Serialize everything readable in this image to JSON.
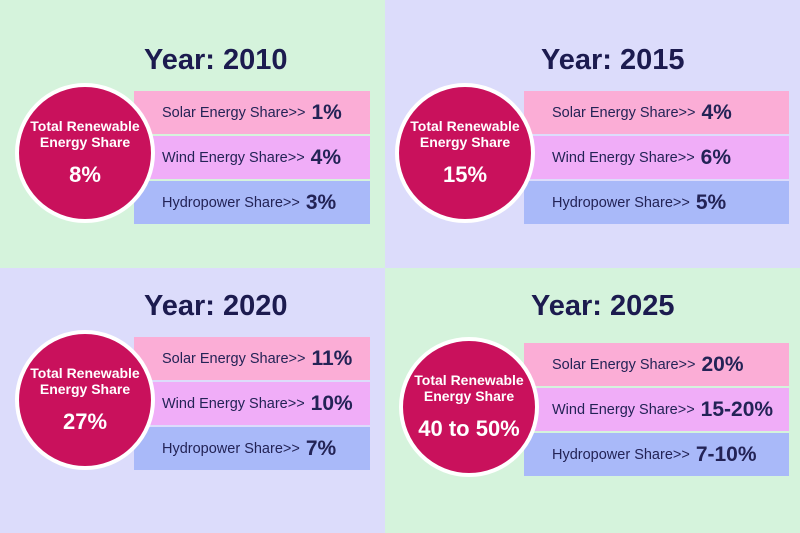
{
  "colors": {
    "green_bg": "#d5f3dc",
    "lavender_bg": "#dcdcfb",
    "circle": "#c9115c",
    "solar_bar": "#fbadd6",
    "wind_bar": "#f0adf8",
    "hydro_bar": "#a9b9f9",
    "heading_text": "#1c1b4f"
  },
  "panels": [
    {
      "year": "Year: 2010",
      "circle": {
        "title": "Total Renewable Energy Share",
        "value": "8%"
      },
      "rows": [
        {
          "label": "Solar Energy Share>>",
          "value": "1%"
        },
        {
          "label": "Wind Energy Share>>",
          "value": "4%"
        },
        {
          "label": "Hydropower Share>>",
          "value": "3%"
        }
      ]
    },
    {
      "year": "Year: 2015",
      "circle": {
        "title": "Total Renewable Energy Share",
        "value": "15%"
      },
      "rows": [
        {
          "label": "Solar Energy Share>>",
          "value": "4%"
        },
        {
          "label": "Wind Energy Share>>",
          "value": "6%"
        },
        {
          "label": "Hydropower Share>>",
          "value": "5%"
        }
      ]
    },
    {
      "year": "Year: 2020",
      "circle": {
        "title": "Total Renewable Energy Share",
        "value": "27%"
      },
      "rows": [
        {
          "label": "Solar Energy Share>>",
          "value": "11%"
        },
        {
          "label": "Wind Energy Share>>",
          "value": "10%"
        },
        {
          "label": "Hydropower Share>>",
          "value": "7%"
        }
      ]
    },
    {
      "year": "Year: 2025",
      "circle": {
        "title": "Total Renewable Energy Share",
        "value": "40 to 50%"
      },
      "rows": [
        {
          "label": "Solar Energy Share>>",
          "value": "20%"
        },
        {
          "label": "Wind Energy Share>>",
          "value": "15-20%"
        },
        {
          "label": "Hydropower Share>>",
          "value": "7-10%"
        }
      ]
    }
  ]
}
